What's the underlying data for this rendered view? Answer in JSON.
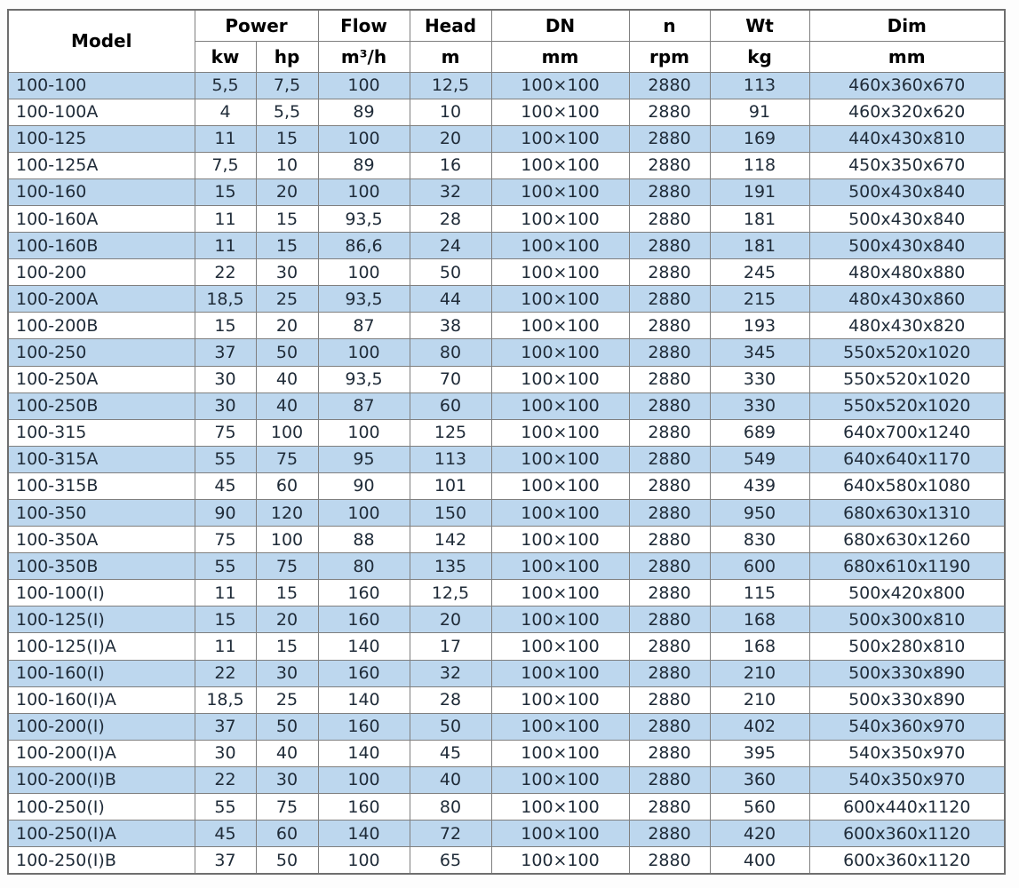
{
  "colors": {
    "row_stripe": "#BDD7EE",
    "row_plain": "#FFFFFF",
    "grid_border": "#7F7F7F",
    "outer_border": "#6E6E6E",
    "header_text": "#000000",
    "body_text": "#1F2B38"
  },
  "table": {
    "header": {
      "model": "Model",
      "power": "Power",
      "flow": "Flow",
      "head": "Head",
      "dn": "DN",
      "n": "n",
      "wt": "Wt",
      "dim": "Dim"
    },
    "units": {
      "kw": "kw",
      "hp": "hp",
      "flow": "m³/h",
      "head": "m",
      "dn": "mm",
      "n": "rpm",
      "wt": "kg",
      "dim": "mm"
    },
    "rows": [
      {
        "model": "100-100",
        "kw": "5,5",
        "hp": "7,5",
        "flow": "100",
        "head": "12,5",
        "dn": "100×100",
        "n": "2880",
        "wt": "113",
        "dim": "460x360x670"
      },
      {
        "model": "100-100A",
        "kw": "4",
        "hp": "5,5",
        "flow": "89",
        "head": "10",
        "dn": "100×100",
        "n": "2880",
        "wt": "91",
        "dim": "460x320x620"
      },
      {
        "model": "100-125",
        "kw": "11",
        "hp": "15",
        "flow": "100",
        "head": "20",
        "dn": "100×100",
        "n": "2880",
        "wt": "169",
        "dim": "440x430x810"
      },
      {
        "model": "100-125A",
        "kw": "7,5",
        "hp": "10",
        "flow": "89",
        "head": "16",
        "dn": "100×100",
        "n": "2880",
        "wt": "118",
        "dim": "450x350x670"
      },
      {
        "model": "100-160",
        "kw": "15",
        "hp": "20",
        "flow": "100",
        "head": "32",
        "dn": "100×100",
        "n": "2880",
        "wt": "191",
        "dim": "500x430x840"
      },
      {
        "model": "100-160A",
        "kw": "11",
        "hp": "15",
        "flow": "93,5",
        "head": "28",
        "dn": "100×100",
        "n": "2880",
        "wt": "181",
        "dim": "500x430x840"
      },
      {
        "model": "100-160B",
        "kw": "11",
        "hp": "15",
        "flow": "86,6",
        "head": "24",
        "dn": "100×100",
        "n": "2880",
        "wt": "181",
        "dim": "500x430x840"
      },
      {
        "model": "100-200",
        "kw": "22",
        "hp": "30",
        "flow": "100",
        "head": "50",
        "dn": "100×100",
        "n": "2880",
        "wt": "245",
        "dim": "480x480x880"
      },
      {
        "model": "100-200A",
        "kw": "18,5",
        "hp": "25",
        "flow": "93,5",
        "head": "44",
        "dn": "100×100",
        "n": "2880",
        "wt": "215",
        "dim": "480x430x860"
      },
      {
        "model": "100-200B",
        "kw": "15",
        "hp": "20",
        "flow": "87",
        "head": "38",
        "dn": "100×100",
        "n": "2880",
        "wt": "193",
        "dim": "480x430x820"
      },
      {
        "model": "100-250",
        "kw": "37",
        "hp": "50",
        "flow": "100",
        "head": "80",
        "dn": "100×100",
        "n": "2880",
        "wt": "345",
        "dim": "550x520x1020"
      },
      {
        "model": "100-250A",
        "kw": "30",
        "hp": "40",
        "flow": "93,5",
        "head": "70",
        "dn": "100×100",
        "n": "2880",
        "wt": "330",
        "dim": "550x520x1020"
      },
      {
        "model": "100-250B",
        "kw": "30",
        "hp": "40",
        "flow": "87",
        "head": "60",
        "dn": "100×100",
        "n": "2880",
        "wt": "330",
        "dim": "550x520x1020"
      },
      {
        "model": "100-315",
        "kw": "75",
        "hp": "100",
        "flow": "100",
        "head": "125",
        "dn": "100×100",
        "n": "2880",
        "wt": "689",
        "dim": "640x700x1240"
      },
      {
        "model": "100-315A",
        "kw": "55",
        "hp": "75",
        "flow": "95",
        "head": "113",
        "dn": "100×100",
        "n": "2880",
        "wt": "549",
        "dim": "640x640x1170"
      },
      {
        "model": "100-315B",
        "kw": "45",
        "hp": "60",
        "flow": "90",
        "head": "101",
        "dn": "100×100",
        "n": "2880",
        "wt": "439",
        "dim": "640x580x1080"
      },
      {
        "model": "100-350",
        "kw": "90",
        "hp": "120",
        "flow": "100",
        "head": "150",
        "dn": "100×100",
        "n": "2880",
        "wt": "950",
        "dim": "680x630x1310"
      },
      {
        "model": "100-350A",
        "kw": "75",
        "hp": "100",
        "flow": "88",
        "head": "142",
        "dn": "100×100",
        "n": "2880",
        "wt": "830",
        "dim": "680x630x1260"
      },
      {
        "model": "100-350B",
        "kw": "55",
        "hp": "75",
        "flow": "80",
        "head": "135",
        "dn": "100×100",
        "n": "2880",
        "wt": "600",
        "dim": "680x610x1190"
      },
      {
        "model": "100-100(I)",
        "kw": "11",
        "hp": "15",
        "flow": "160",
        "head": "12,5",
        "dn": "100×100",
        "n": "2880",
        "wt": "115",
        "dim": "500x420x800"
      },
      {
        "model": "100-125(I)",
        "kw": "15",
        "hp": "20",
        "flow": "160",
        "head": "20",
        "dn": "100×100",
        "n": "2880",
        "wt": "168",
        "dim": "500x300x810"
      },
      {
        "model": "100-125(I)A",
        "kw": "11",
        "hp": "15",
        "flow": "140",
        "head": "17",
        "dn": "100×100",
        "n": "2880",
        "wt": "168",
        "dim": "500x280x810"
      },
      {
        "model": "100-160(I)",
        "kw": "22",
        "hp": "30",
        "flow": "160",
        "head": "32",
        "dn": "100×100",
        "n": "2880",
        "wt": "210",
        "dim": "500x330x890"
      },
      {
        "model": "100-160(I)A",
        "kw": "18,5",
        "hp": "25",
        "flow": "140",
        "head": "28",
        "dn": "100×100",
        "n": "2880",
        "wt": "210",
        "dim": "500x330x890"
      },
      {
        "model": "100-200(I)",
        "kw": "37",
        "hp": "50",
        "flow": "160",
        "head": "50",
        "dn": "100×100",
        "n": "2880",
        "wt": "402",
        "dim": "540x360x970"
      },
      {
        "model": "100-200(I)A",
        "kw": "30",
        "hp": "40",
        "flow": "140",
        "head": "45",
        "dn": "100×100",
        "n": "2880",
        "wt": "395",
        "dim": "540x350x970"
      },
      {
        "model": "100-200(I)B",
        "kw": "22",
        "hp": "30",
        "flow": "100",
        "head": "40",
        "dn": "100×100",
        "n": "2880",
        "wt": "360",
        "dim": "540x350x970"
      },
      {
        "model": "100-250(I)",
        "kw": "55",
        "hp": "75",
        "flow": "160",
        "head": "80",
        "dn": "100×100",
        "n": "2880",
        "wt": "560",
        "dim": "600x440x1120"
      },
      {
        "model": "100-250(I)A",
        "kw": "45",
        "hp": "60",
        "flow": "140",
        "head": "72",
        "dn": "100×100",
        "n": "2880",
        "wt": "420",
        "dim": "600x360x1120"
      },
      {
        "model": "100-250(I)B",
        "kw": "37",
        "hp": "50",
        "flow": "100",
        "head": "65",
        "dn": "100×100",
        "n": "2880",
        "wt": "400",
        "dim": "600x360x1120"
      }
    ]
  }
}
